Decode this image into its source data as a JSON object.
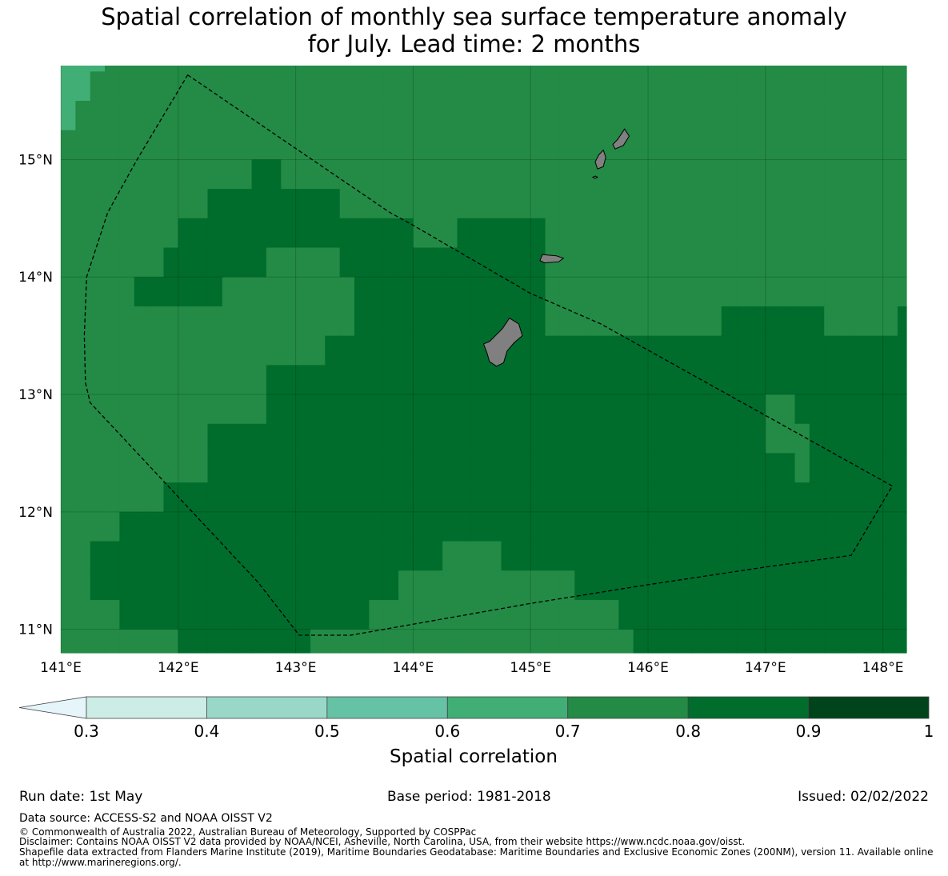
{
  "title": {
    "line1": "Spatial correlation of monthly sea surface temperature anomaly",
    "line2": "for July. Lead time: 2 months"
  },
  "map": {
    "lon_ticks": [
      "141°E",
      "142°E",
      "143°E",
      "144°E",
      "145°E",
      "146°E",
      "147°E",
      "148°E"
    ],
    "lat_ticks": [
      "15°N",
      "14°N",
      "13°N",
      "12°N",
      "11°N"
    ],
    "extent": {
      "lon": [
        141.0,
        148.2
      ],
      "lat": [
        10.8,
        15.8
      ]
    },
    "grid_cell_deg": 0.25,
    "correlation_classes": {
      "2": "0.7–0.8",
      "1": "0.6–0.7",
      "3": "0.8–0.9"
    },
    "correlation_grid_rows_north_to_south": [
      "11122222222222222222222222222222222222222222222222222222222",
      "11222222222222222222222222222222222222222222222222222222222",
      "12222222222222222222222222222222222222222222222222222222222",
      "22222222222222222222222222222222222222222222222222222222222",
      "22222222222223322222222222222222222222222222222222222222222",
      "22222222223333333332222222222222222222222222222222222222222",
      "22222222333333333333333322233333322222222222222222222222222",
      "22222223333333222223333333333333322222222222222222222222222",
      "22222333333222222222333333333333322222222222222222222222223",
      "22222222222222222222333333333333322222222222233333332222233",
      "22222222222222222233333333333333333333333333333333333333333",
      "22222222222222333333333333333333333333333333333333333333333",
      "22222222222222333333333333333333333333333333333322333333333",
      "22222222223333333333333333333333333333333333333322233333333",
      "22222222223333333333333333333333333333333333333333233333333",
      "22222223333333333333333333333333333333333333333333333333333",
      "22223333333333333333333333333333333333333333333333333333333",
      "22333333333333333333333333222233333333333333333333333333333",
      "22333333333333333333333222222222222333333333333333333333333",
      "22223333333333333333322222222222222222333333333333333333333",
      "22222222333333333222222222222222222222233333333333333333333",
      "22222222222222222222222222222222222222222223333333333333333",
      "22222222222222222222222222222222222222222222222222233333222"
    ],
    "islands": [
      "Saipan",
      "Tinian",
      "Aguijan",
      "Rota",
      "Guam"
    ],
    "eez_boundary": [
      [
        142.08,
        15.72
      ],
      [
        143.8,
        14.55
      ],
      [
        144.0,
        14.44
      ],
      [
        145.0,
        13.86
      ],
      [
        145.6,
        13.6
      ],
      [
        148.08,
        12.22
      ],
      [
        147.73,
        11.63
      ],
      [
        147.0,
        11.53
      ],
      [
        146.0,
        11.38
      ],
      [
        145.0,
        11.22
      ],
      [
        143.47,
        10.95
      ],
      [
        143.03,
        10.95
      ],
      [
        142.68,
        11.4
      ],
      [
        141.25,
        12.93
      ],
      [
        141.21,
        13.1
      ],
      [
        141.2,
        13.5
      ],
      [
        141.22,
        14.0
      ],
      [
        141.4,
        14.55
      ],
      [
        141.65,
        15.0
      ],
      [
        142.08,
        15.72
      ]
    ]
  },
  "colorbar": {
    "ticks": [
      "0.3",
      "0.4",
      "0.5",
      "0.6",
      "0.7",
      "0.8",
      "0.9",
      "1"
    ],
    "colors": [
      "#e5f5f9",
      "#ccece6",
      "#99d8c9",
      "#66c2a4",
      "#41ae76",
      "#238b45",
      "#006d2c",
      "#00441b"
    ],
    "label": "Spatial correlation"
  },
  "footer": {
    "run_date": "Run date: 1st May",
    "base_period": "Base period: 1981-2018",
    "issued": "Issued: 02/02/2022",
    "data_source": "Data source: ACCESS-S2 and NOAA OISST V2",
    "copyright": "© Commonwealth of Australia 2022, Australian Bureau of Meteorology, Supported by COSPPac",
    "disclaimer": "Disclaimer: Contains NOAA OISST V2 data provided by NOAA/NCEI, Asheville, North Carolina, USA, from their website https://www.ncdc.noaa.gov/oisst.",
    "shapefile_1": "Shapefile data extracted from Flanders Marine Institute (2019), Maritime Boundaries Geodatabase: Maritime Boundaries and Exclusive Economic Zones (200NM), version 11. Available online",
    "shapefile_2": "at http://www.marineregions.org/."
  }
}
